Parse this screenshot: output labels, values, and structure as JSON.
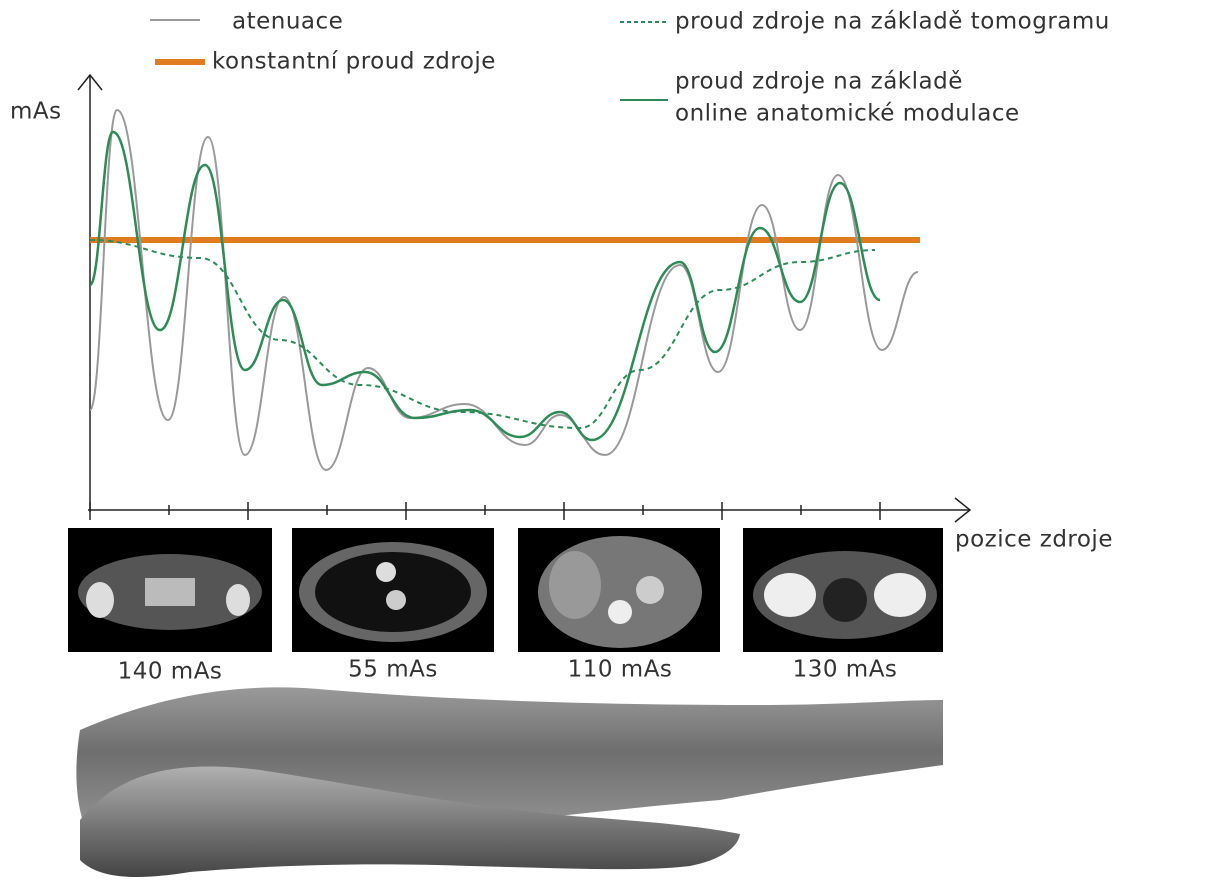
{
  "legend": {
    "attenuation": "atenuace",
    "constant": "konstantní proud zdroje",
    "tomogram": "proud zdroje na základě tomogramu",
    "online_line1": "proud zdroje na základě",
    "online_line2": "online anatomické modulace"
  },
  "axes": {
    "y_label": "mAs",
    "x_label": "pozice zdroje"
  },
  "scans": [
    {
      "label": "140 mAs"
    },
    {
      "label": "55 mAs"
    },
    {
      "label": "110 mAs"
    },
    {
      "label": "130 mAs"
    }
  ]
}
